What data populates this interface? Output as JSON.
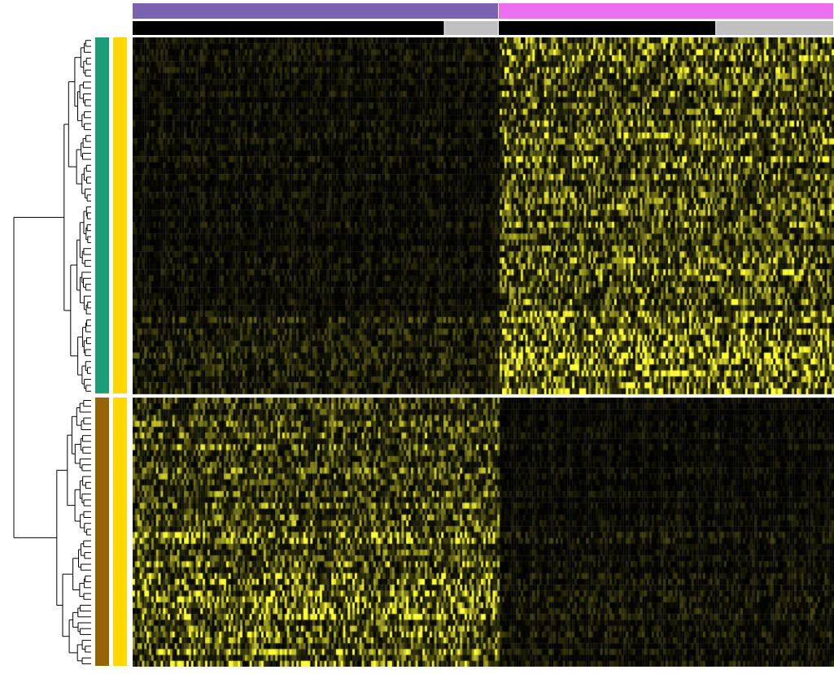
{
  "chart_data": {
    "type": "heatmap",
    "colors": {
      "low": "#000000",
      "high": "#ffff33",
      "separator": "#ffffff",
      "dendrogram": "#000000"
    },
    "column_annotations": [
      {
        "groups": [
          {
            "fraction": 0.522,
            "color": "#7b62b1"
          },
          {
            "fraction": 0.478,
            "color": "#ec6fef"
          }
        ]
      },
      {
        "groups": [
          {
            "fraction": 0.445,
            "color": "#000000"
          },
          {
            "fraction": 0.077,
            "color": "#c0c0c0"
          },
          {
            "fraction": 0.31,
            "color": "#000000"
          },
          {
            "fraction": 0.168,
            "color": "#c0c0c0"
          }
        ]
      }
    ],
    "row_annotations": [
      {
        "clusters": [
          {
            "fraction": 0.57,
            "color": "#1b9e77"
          },
          {
            "fraction": 0.43,
            "color": "#966405"
          }
        ]
      },
      {
        "clusters": [
          {
            "fraction": 0.57,
            "color": "#ffd700"
          },
          {
            "fraction": 0.43,
            "color": "#ffd700"
          }
        ]
      }
    ],
    "row_clusters": [
      {
        "row_fraction": 0.57,
        "rows": 60,
        "column_group_mean_expression": [
          0.1,
          0.55
        ],
        "high_band": {
          "start_fraction": 0.78,
          "end_fraction": 1.0,
          "column_group_mean_expression": [
            0.2,
            0.8
          ]
        }
      },
      {
        "row_fraction": 0.43,
        "rows": 46,
        "column_group_mean_expression": [
          0.45,
          0.08
        ],
        "high_band": {
          "start_fraction": 0.5,
          "end_fraction": 1.0,
          "column_group_mean_expression": [
            0.6,
            0.12
          ]
        }
      }
    ],
    "columns": 300
  }
}
